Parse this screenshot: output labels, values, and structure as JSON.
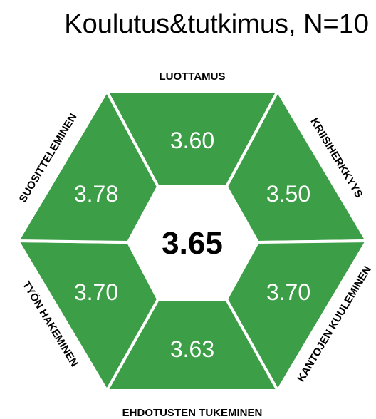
{
  "title": "Koulutus&tutkimus, N=10",
  "center": "3.65",
  "segments": [
    {
      "label": "LUOTTAMUS",
      "value": "3.60"
    },
    {
      "label": "KRIISIHERKKYYS",
      "value": "3.50"
    },
    {
      "label": "KANTOJEN KUULEMINEN",
      "value": "3.70"
    },
    {
      "label": "EHDOTUSTEN TUKEMINEN",
      "value": "3.63"
    },
    {
      "label": "TYÖN HAKEMINEN",
      "value": "3.70"
    },
    {
      "label": "SUOSITTELEMINEN",
      "value": "3.78"
    }
  ]
}
